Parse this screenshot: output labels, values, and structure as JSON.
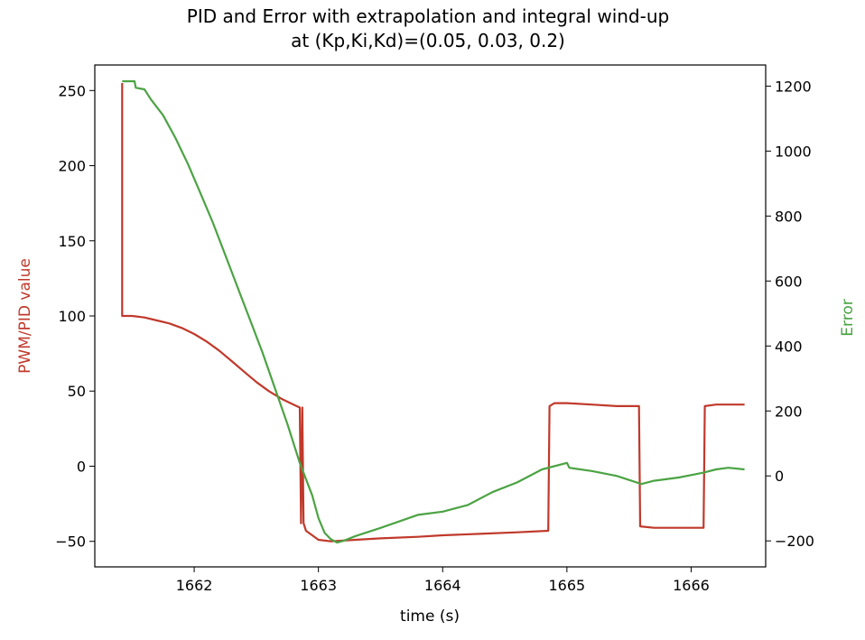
{
  "chart_data": {
    "type": "line",
    "title": "PID and Error with extrapolation and integral wind-up",
    "subtitle": "at (Kp,Ki,Kd)=(0.05, 0.03, 0.2)",
    "xlabel": "time (s)",
    "ylabel_left": "PWM/PID value",
    "ylabel_right": "Error",
    "xlim": [
      1661.2,
      1666.6
    ],
    "ylim_left": [
      -67,
      267
    ],
    "ylim_right": [
      -280,
      1265
    ],
    "x_ticks": [
      1662,
      1663,
      1664,
      1665,
      1666
    ],
    "y_left_ticks": [
      -50,
      0,
      50,
      100,
      150,
      200,
      250
    ],
    "y_right_ticks": [
      -200,
      0,
      200,
      400,
      600,
      800,
      1000,
      1200
    ],
    "colors": {
      "pwm": "#c0392b",
      "error": "#4ba343"
    },
    "series": [
      {
        "name": "PWM/PID value",
        "axis": "left",
        "color": "#c0392b",
        "points": [
          [
            1661.42,
            255
          ],
          [
            1661.42,
            100
          ],
          [
            1661.5,
            100
          ],
          [
            1661.6,
            99
          ],
          [
            1661.7,
            97
          ],
          [
            1661.8,
            95
          ],
          [
            1661.9,
            92
          ],
          [
            1662.0,
            88
          ],
          [
            1662.1,
            83
          ],
          [
            1662.2,
            77
          ],
          [
            1662.3,
            70
          ],
          [
            1662.4,
            63
          ],
          [
            1662.5,
            56
          ],
          [
            1662.6,
            50
          ],
          [
            1662.7,
            45
          ],
          [
            1662.8,
            41
          ],
          [
            1662.85,
            39
          ],
          [
            1662.86,
            -38
          ],
          [
            1662.87,
            39
          ],
          [
            1662.88,
            -38
          ],
          [
            1662.9,
            -43
          ],
          [
            1663.0,
            -49
          ],
          [
            1663.1,
            -50
          ],
          [
            1663.3,
            -49
          ],
          [
            1663.5,
            -48
          ],
          [
            1663.8,
            -47
          ],
          [
            1664.0,
            -46
          ],
          [
            1664.3,
            -45
          ],
          [
            1664.6,
            -44
          ],
          [
            1664.85,
            -43
          ],
          [
            1664.86,
            40
          ],
          [
            1664.9,
            42
          ],
          [
            1665.0,
            42
          ],
          [
            1665.2,
            41
          ],
          [
            1665.4,
            40
          ],
          [
            1665.58,
            40
          ],
          [
            1665.59,
            -40
          ],
          [
            1665.7,
            -41
          ],
          [
            1665.9,
            -41
          ],
          [
            1666.1,
            -41
          ],
          [
            1666.11,
            40
          ],
          [
            1666.2,
            41
          ],
          [
            1666.3,
            41
          ],
          [
            1666.43,
            41
          ]
        ]
      },
      {
        "name": "Error",
        "axis": "right",
        "color": "#4ba343",
        "points": [
          [
            1661.42,
            1215
          ],
          [
            1661.52,
            1215
          ],
          [
            1661.53,
            1195
          ],
          [
            1661.6,
            1190
          ],
          [
            1661.65,
            1160
          ],
          [
            1661.75,
            1110
          ],
          [
            1661.85,
            1040
          ],
          [
            1661.95,
            960
          ],
          [
            1662.05,
            870
          ],
          [
            1662.15,
            780
          ],
          [
            1662.25,
            680
          ],
          [
            1662.35,
            580
          ],
          [
            1662.45,
            480
          ],
          [
            1662.55,
            380
          ],
          [
            1662.65,
            270
          ],
          [
            1662.75,
            160
          ],
          [
            1662.85,
            40
          ],
          [
            1662.95,
            -60
          ],
          [
            1663.0,
            -130
          ],
          [
            1663.05,
            -175
          ],
          [
            1663.1,
            -195
          ],
          [
            1663.15,
            -205
          ],
          [
            1663.2,
            -200
          ],
          [
            1663.3,
            -185
          ],
          [
            1663.5,
            -160
          ],
          [
            1663.8,
            -120
          ],
          [
            1664.0,
            -110
          ],
          [
            1664.2,
            -90
          ],
          [
            1664.4,
            -50
          ],
          [
            1664.6,
            -20
          ],
          [
            1664.8,
            20
          ],
          [
            1665.0,
            40
          ],
          [
            1665.02,
            25
          ],
          [
            1665.2,
            15
          ],
          [
            1665.4,
            0
          ],
          [
            1665.6,
            -25
          ],
          [
            1665.7,
            -15
          ],
          [
            1665.9,
            -5
          ],
          [
            1666.1,
            10
          ],
          [
            1666.2,
            20
          ],
          [
            1666.3,
            25
          ],
          [
            1666.43,
            20
          ]
        ]
      }
    ]
  }
}
